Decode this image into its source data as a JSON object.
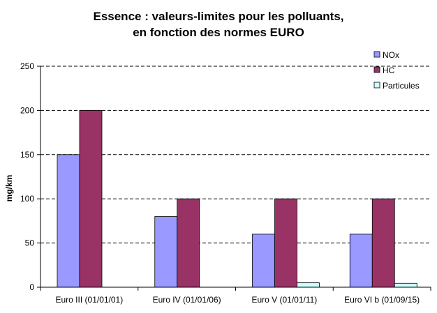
{
  "chart_data": {
    "type": "bar",
    "title": [
      "Essence : valeurs-limites pour les polluants,",
      "en fonction des normes EURO"
    ],
    "xlabel": "",
    "ylabel": "mg/km",
    "ylim": [
      0,
      250
    ],
    "yticks": [
      0,
      50,
      100,
      150,
      200,
      250
    ],
    "grid": true,
    "legend_position": "top-right",
    "categories": [
      "Euro III (01/01/01)",
      "Euro IV (01/01/06)",
      "Euro V (01/01/11)",
      "Euro VI b (01/09/15)"
    ],
    "series": [
      {
        "name": "NOx",
        "color": "#9999ff",
        "values": [
          150,
          80,
          60,
          60
        ]
      },
      {
        "name": "HC",
        "color": "#993366",
        "values": [
          200,
          100,
          100,
          100
        ]
      },
      {
        "name": "Particules",
        "color": "#ccffff",
        "values": [
          0,
          0,
          5,
          4.5
        ]
      }
    ]
  }
}
